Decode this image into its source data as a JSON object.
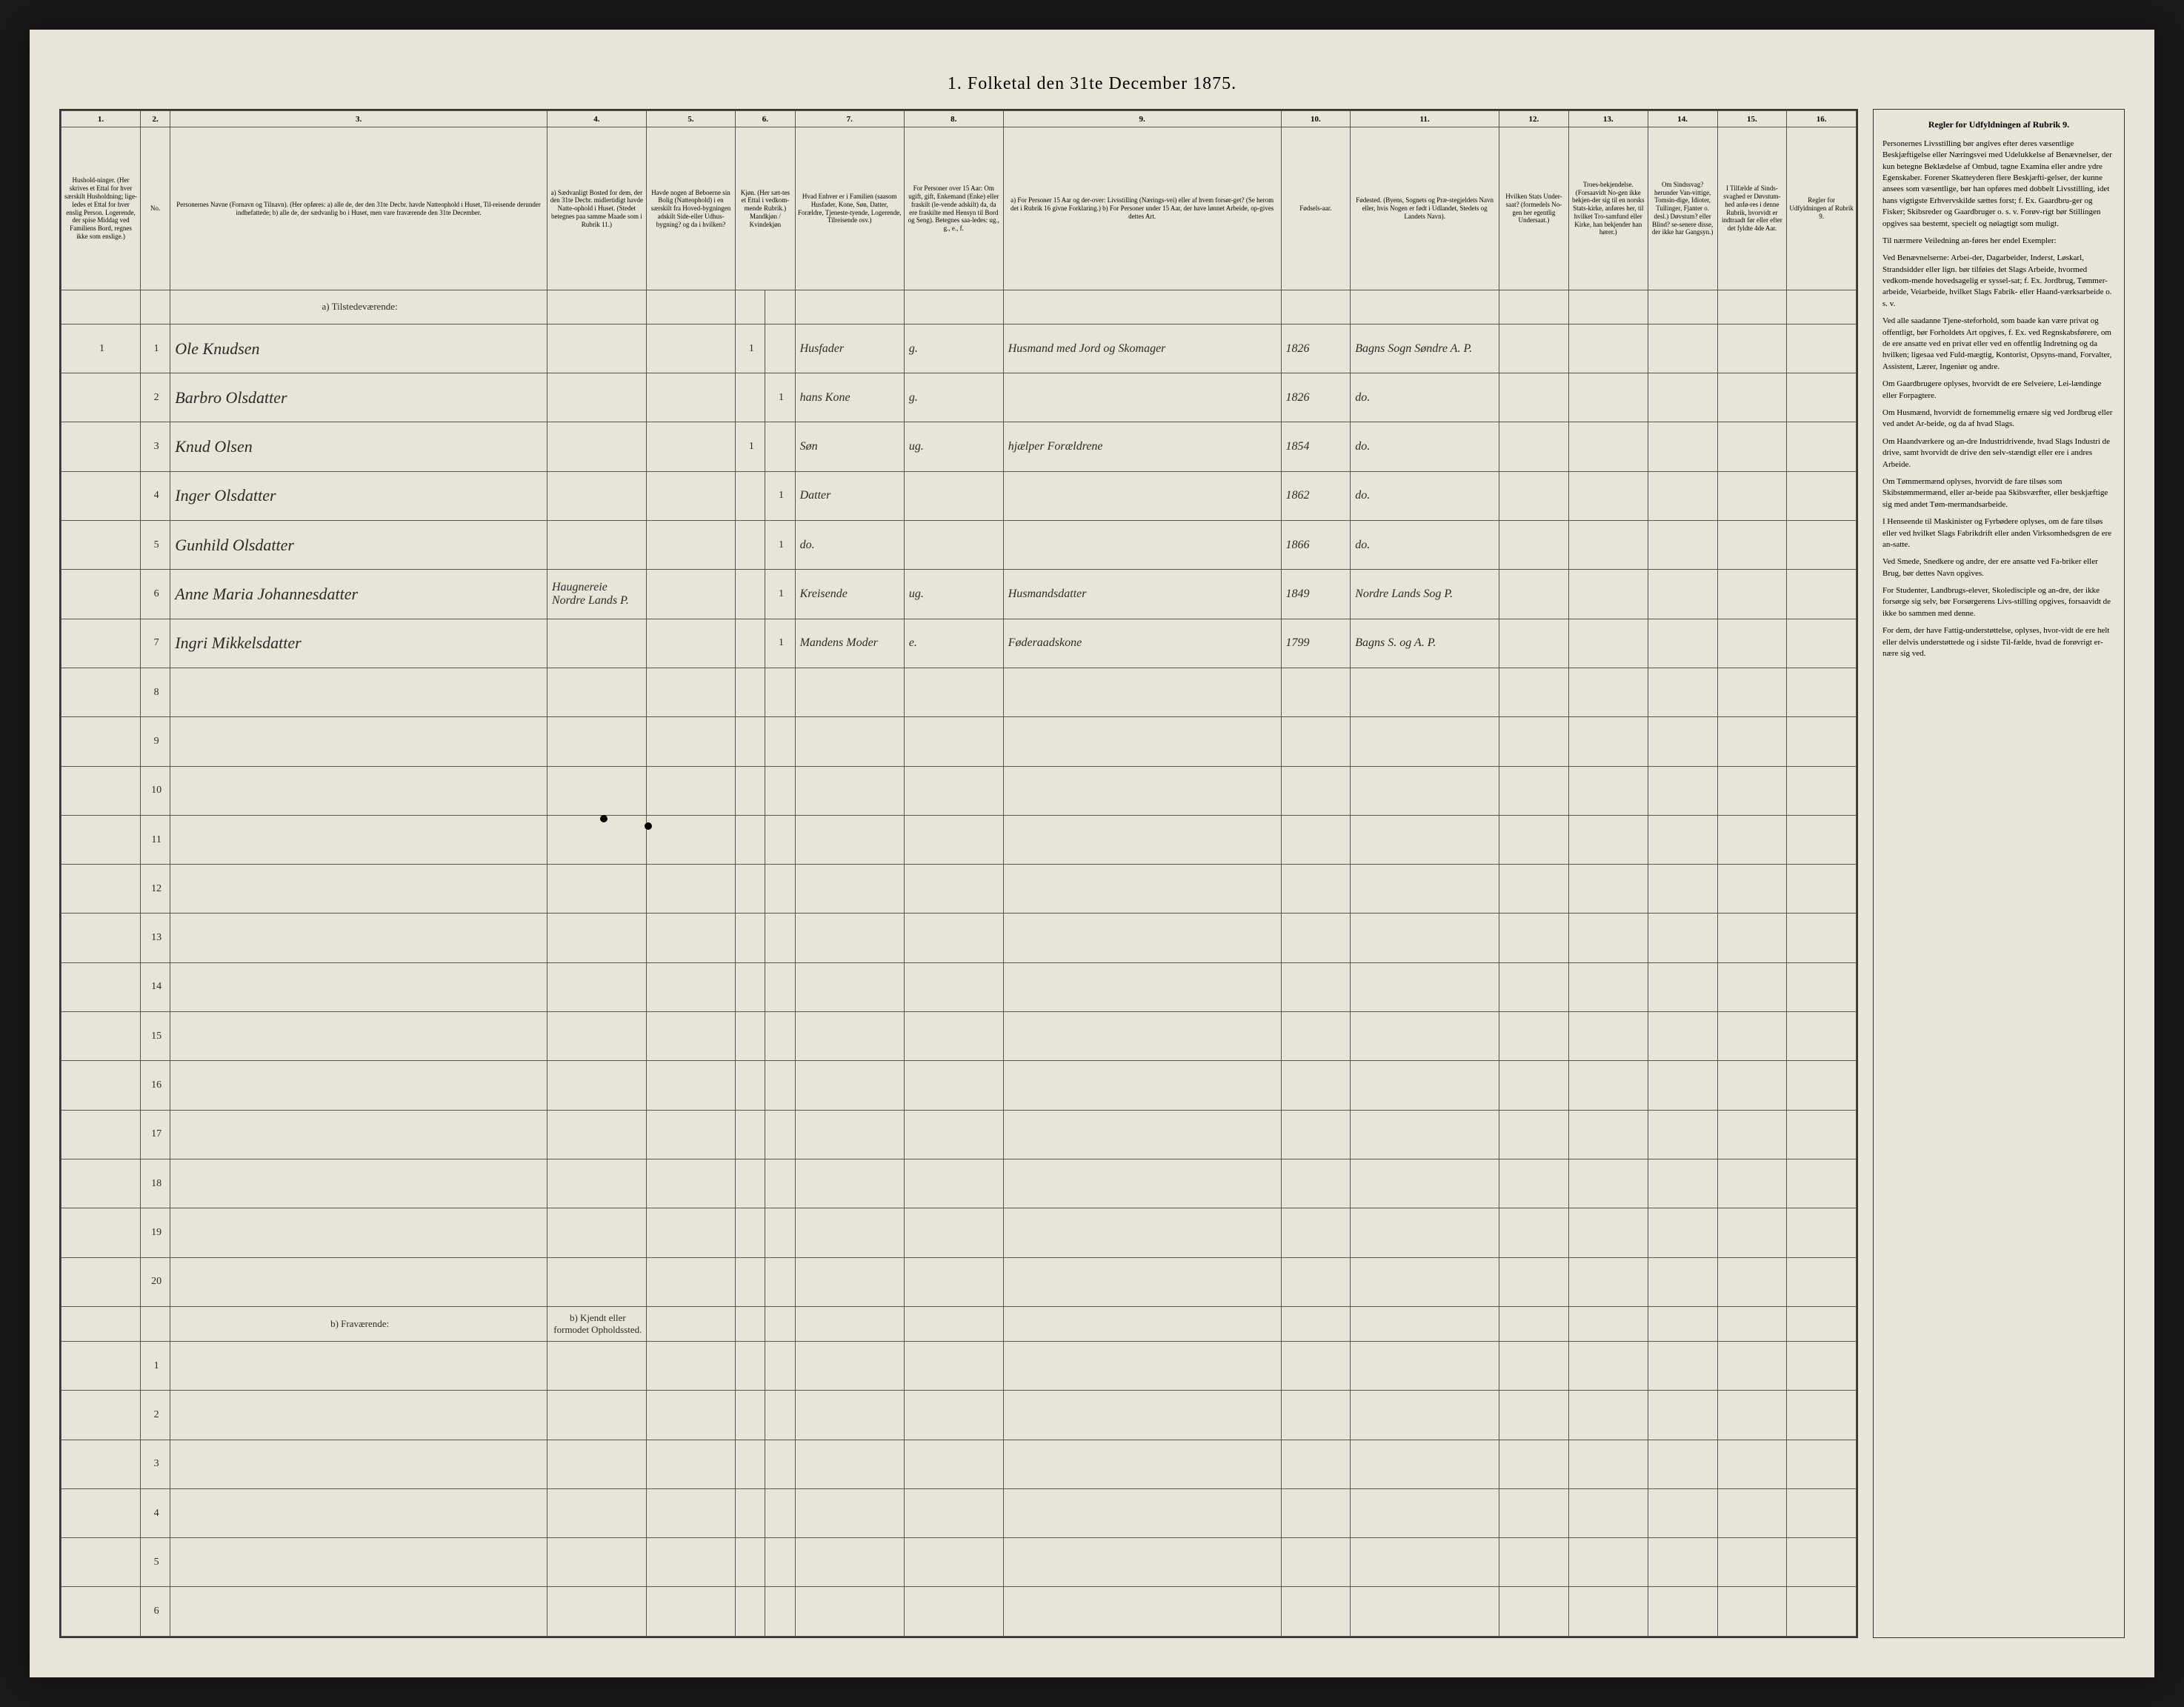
{
  "title": "1. Folketal den 31te December 1875.",
  "columns": {
    "nums": [
      "1.",
      "2.",
      "3.",
      "4.",
      "5.",
      "6.",
      "7.",
      "8.",
      "9.",
      "10.",
      "11.",
      "12.",
      "13.",
      "14.",
      "15.",
      "16."
    ],
    "headers": [
      "Hushold-ninger. (Her skrives et Ettal for hver særskilt Husholdning; lige-ledes et Ettal for hver enslig Person. Logerende, der spise Middag ved Familiens Bord, regnes ikke som enslige.)",
      "No.",
      "Personernes Navne (Fornavn og Tilnavn). (Her opføres: a) alle de, der den 31te Decbr. havde Natteophold i Huset, Til-reisende derunder indbefattede; b) alle de, der sædvanlig bo i Huset, men vare fraværende den 31te December.",
      "a) Sædvanligt Bosted for dem, der den 31te Decbr. midlertidigt havde Natte-ophold i Huset. (Stedet betegnes paa samme Maade som i Rubrik 11.)",
      "Havde nogen af Beboerne sin Bolig (Natteophold) i en særskilt fra Hoved-bygningen adskilt Side-eller Udhus-bygning? og da i hvilken?",
      "Kjøn. (Her sæt-tes et Ettal i vedkom-mende Rubrik.) Mandkjøn / Kvindekjøn",
      "Hvad Enhver er i Familien (saasom Husfader, Kone, Søn, Datter, Forældre, Tjeneste-tyende, Logerende, Tilreisende osv.)",
      "For Personer over 15 Aar: Om ugift, gift, Enkemand (Enke) eller fraskilt (le-vende adskilt) da, da ere fraskilte med Hensyn til Bord og Seng). Betegnes saa-ledes: ug., g., e., f.",
      "a) For Personer 15 Aar og der-over: Livsstilling (Nærings-vei) eller af hvem forsør-get? (Se herom det i Rubrik 16 givne Forklaring.) b) For Personer under 15 Aar, der have lønnet Arbeide, op-gives dettes Art.",
      "Fødsels-aar.",
      "Fødested. (Byens, Sognets og Præ-stegjeldets Navn eller, hvis Nogen er født i Udlandet, Stedets og Landets Navn).",
      "Hvilken Stats Under-saat? (formedels No-gen her egentlig Undersaat.)",
      "Troes-bekjendelse. (Forsaavidt No-gen ikke bekjen-der sig til en norsks Stats-kirke, anføres her, til hvilket Tro-samfund eller Kirke, han bekjender han hører.)",
      "Om Sindssvag? herunder Van-vittige, Tomsin-dige, Idioter, Tullinger, Fjanter o. desl.) Døvstum? eller Blind? se-senere disse, der ikke har Gangsyn.)",
      "I Tilfælde af Sinds-svaghed er Døvstum-hed anfø-res i denne Rubrik, hvorvidt er indtraadt før eller efter det fyldte 4de Aar.",
      "Regler for Udfyldningen af Rubrik 9."
    ]
  },
  "section_a": "a) Tilstedeværende:",
  "section_b": "b) Fraværende:",
  "section_b_note": "b) Kjendt eller formodet Opholdssted.",
  "rows": [
    {
      "hh": "1",
      "no": "1",
      "name": "Ole Knudsen",
      "col4": "",
      "col5": "",
      "m": "1",
      "k": "",
      "rel": "Husfader",
      "civ": "g.",
      "occ": "Husmand med Jord og Skomager",
      "year": "1826",
      "place": "Bagns Sogn Søndre A. P."
    },
    {
      "hh": "",
      "no": "2",
      "name": "Barbro Olsdatter",
      "col4": "",
      "col5": "",
      "m": "",
      "k": "1",
      "rel": "hans Kone",
      "civ": "g.",
      "occ": "",
      "year": "1826",
      "place": "do."
    },
    {
      "hh": "",
      "no": "3",
      "name": "Knud Olsen",
      "col4": "",
      "col5": "",
      "m": "1",
      "k": "",
      "rel": "Søn",
      "civ": "ug.",
      "occ": "hjælper Forældrene",
      "year": "1854",
      "place": "do."
    },
    {
      "hh": "",
      "no": "4",
      "name": "Inger Olsdatter",
      "col4": "",
      "col5": "",
      "m": "",
      "k": "1",
      "rel": "Datter",
      "civ": "",
      "occ": "",
      "year": "1862",
      "place": "do."
    },
    {
      "hh": "",
      "no": "5",
      "name": "Gunhild Olsdatter",
      "col4": "",
      "col5": "",
      "m": "",
      "k": "1",
      "rel": "do.",
      "civ": "",
      "occ": "",
      "year": "1866",
      "place": "do."
    },
    {
      "hh": "",
      "no": "6",
      "name": "Anne Maria Johannesdatter",
      "col4": "Haugnereie Nordre Lands P.",
      "col5": "",
      "m": "",
      "k": "1",
      "rel": "Kreisende",
      "civ": "ug.",
      "occ": "Husmandsdatter",
      "year": "1849",
      "place": "Nordre Lands Sog P."
    },
    {
      "hh": "",
      "no": "7",
      "name": "Ingri Mikkelsdatter",
      "col4": "",
      "col5": "",
      "m": "",
      "k": "1",
      "rel": "Mandens Moder",
      "civ": "e.",
      "occ": "Føderaadskone",
      "year": "1799",
      "place": "Bagns S. og A. P."
    }
  ],
  "empty_present": [
    "8",
    "9",
    "10",
    "11",
    "12",
    "13",
    "14",
    "15",
    "16",
    "17",
    "18",
    "19",
    "20"
  ],
  "empty_absent": [
    "1",
    "2",
    "3",
    "4",
    "5",
    "6"
  ],
  "sidebar": {
    "header": "Regler for Udfyldningen af Rubrik 9.",
    "paragraphs": [
      "Personernes Livsstilling bør angives efter deres væsentlige Beskjæftigelse eller Næringsvei med Udelukkelse af Benævnelser, der kun betegne Beklædelse af Ombud, tagne Examina eller andre ydre Egenskaber. Forener Skatteyderen flere Beskjæfti-gelser, der kunne ansees som væsentlige, bør han opføres med dobbelt Livsstilling, idet hans vigtigste Erhvervskilde sættes forst; f. Ex. Gaardbru-ger og Fisker; Skibsreder og Gaardbruger o. s. v. Forøv-rigt bør Stillingen opgives saa bestemt, specielt og nøiagtigt som muligt.",
      "Til nærmere Veiledning an-føres her endel Exempler:",
      "Ved Benævnelserne: Arbei-der, Dagarbeider, Inderst, Løskarl, Strandsidder eller lign. bør tilføies det Slags Arbeide, hvormed vedkom-mende hovedsagelig er syssel-sat; f. Ex. Jordbrug, Tømmer-arbeide, Veiarbeide, hvilket Slags Fabrik- eller Haand-værksarbeide o. s. v.",
      "Ved alle saadanne Tjene-steforhold, som baade kan være privat og offentligt, bør Forholdets Art opgives, f. Ex. ved Regnskabsførere, om de ere ansatte ved en privat eller ved en offentlig Indretning og da hvilken; ligesaa ved Fuld-mægtig, Kontorist, Opsyns-mand, Forvalter, Assistent, Lærer, Ingeniør og andre.",
      "Om Gaardbrugere oplyses, hvorvidt de ere Selveiere, Lei-lændinge eller Forpagtere.",
      "Om Husmænd, hvorvidt de fornemmelig ernære sig ved Jordbrug eller ved andet Ar-beide, og da af hvad Slags.",
      "Om Haandværkere og an-dre Industridrivende, hvad Slags Industri de drive, samt hvorvidt de drive den selv-stændigt eller ere i andres Arbeide.",
      "Om Tømmermænd oplyses, hvorvidt de fare tilsøs som Skibstømmermænd, eller ar-beide paa Skibsværfter, eller beskjæftige sig med andet Tøm-mermandsarbeide.",
      "I Henseende til Maskinister og Fyrbødere oplyses, om de fare tilsøs eller ved hvilket Slags Fabrikdrift eller anden Virksomhedsgren de ere an-satte.",
      "Ved Smede, Snedkere og andre, der ere ansatte ved Fa-briker eller Brug, bør dettes Navn opgives.",
      "For Studenter, Landbrugs-elever, Skoledisciple og an-dre, der ikke forsørge sig selv, bør Forsørgerens Livs-stilling opgives, forsaavidt de ikke bo sammen med denne.",
      "For dem, der have Fattig-understøttelse, oplyses, hvor-vidt de ere helt eller delvis understøttede og i sidste Til-fælde, hvad de forøvrigt er-nære sig ved."
    ]
  },
  "colors": {
    "paper": "#e8e4d8",
    "border": "#333333",
    "ink": "#2a2a2a",
    "bg": "#1a1a1a"
  }
}
